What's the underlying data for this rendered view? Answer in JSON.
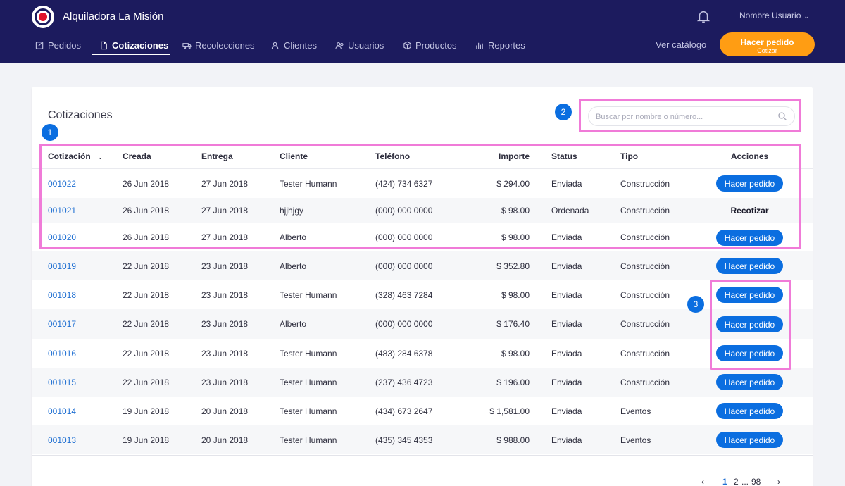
{
  "header": {
    "brand": "Alquiladora La Misión",
    "user_name": "Nombre Usuario",
    "nav": [
      {
        "label": "Pedidos",
        "icon": "edit-icon"
      },
      {
        "label": "Cotizaciones",
        "icon": "document-icon"
      },
      {
        "label": "Recolecciones",
        "icon": "truck-icon"
      },
      {
        "label": "Clientes",
        "icon": "user-icon"
      },
      {
        "label": "Usuarios",
        "icon": "users-icon"
      },
      {
        "label": "Productos",
        "icon": "box-icon"
      },
      {
        "label": "Reportes",
        "icon": "bar-chart-icon"
      }
    ],
    "active_nav": "Cotizaciones",
    "ver_catalogo": "Ver catálogo",
    "cta_main": "Hacer pedido",
    "cta_sub": "Cotizar"
  },
  "main": {
    "title": "Cotizaciones",
    "search_placeholder": "Buscar por nombre o número...",
    "columns": [
      "Cotización",
      "Creada",
      "Entrega",
      "Cliente",
      "Teléfono",
      "Importe",
      "Status",
      "Tipo",
      "Acciones"
    ],
    "rows": [
      {
        "id": "001022",
        "creada": "26 Jun 2018",
        "entrega": "27 Jun 2018",
        "cliente": "Tester Humann",
        "telefono": "(424) 734 6327",
        "importe": "$ 294.00",
        "status": "Enviada",
        "tipo": "Construcción",
        "accion": "Hacer pedido"
      },
      {
        "id": "001021",
        "creada": "26 Jun 2018",
        "entrega": "27 Jun 2018",
        "cliente": "hjjhjgy",
        "telefono": "(000) 000 0000",
        "importe": "$ 98.00",
        "status": "Ordenada",
        "tipo": "Construcción",
        "accion": "Recotizar"
      },
      {
        "id": "001020",
        "creada": "26 Jun 2018",
        "entrega": "27 Jun 2018",
        "cliente": "Alberto",
        "telefono": "(000) 000 0000",
        "importe": "$ 98.00",
        "status": "Enviada",
        "tipo": "Construcción",
        "accion": "Hacer pedido"
      },
      {
        "id": "001019",
        "creada": "22 Jun 2018",
        "entrega": "23 Jun 2018",
        "cliente": "Alberto",
        "telefono": "(000) 000 0000",
        "importe": "$ 352.80",
        "status": "Enviada",
        "tipo": "Construcción",
        "accion": "Hacer pedido"
      },
      {
        "id": "001018",
        "creada": "22 Jun 2018",
        "entrega": "23 Jun 2018",
        "cliente": "Tester Humann",
        "telefono": "(328) 463 7284",
        "importe": "$ 98.00",
        "status": "Enviada",
        "tipo": "Construcción",
        "accion": "Hacer pedido"
      },
      {
        "id": "001017",
        "creada": "22 Jun 2018",
        "entrega": "23 Jun 2018",
        "cliente": "Alberto",
        "telefono": "(000) 000 0000",
        "importe": "$ 176.40",
        "status": "Enviada",
        "tipo": "Construcción",
        "accion": "Hacer pedido"
      },
      {
        "id": "001016",
        "creada": "22 Jun 2018",
        "entrega": "23 Jun 2018",
        "cliente": "Tester Humann",
        "telefono": "(483) 284 6378",
        "importe": "$ 98.00",
        "status": "Enviada",
        "tipo": "Construcción",
        "accion": "Hacer pedido"
      },
      {
        "id": "001015",
        "creada": "22 Jun 2018",
        "entrega": "23 Jun 2018",
        "cliente": "Tester Humann",
        "telefono": "(237) 436 4723",
        "importe": "$ 196.00",
        "status": "Enviada",
        "tipo": "Construcción",
        "accion": "Hacer pedido"
      },
      {
        "id": "001014",
        "creada": "19 Jun 2018",
        "entrega": "20 Jun 2018",
        "cliente": "Tester Humann",
        "telefono": "(434) 673 2647",
        "importe": "$ 1,581.00",
        "status": "Enviada",
        "tipo": "Eventos",
        "accion": "Hacer pedido"
      },
      {
        "id": "001013",
        "creada": "19 Jun 2018",
        "entrega": "20 Jun 2018",
        "cliente": "Tester Humann",
        "telefono": "(435) 345 4353",
        "importe": "$ 988.00",
        "status": "Enviada",
        "tipo": "Eventos",
        "accion": "Hacer pedido"
      }
    ]
  },
  "pagination": {
    "prev": "‹",
    "current": "1",
    "next_page": "2",
    "ellipsis": "...",
    "last": "98",
    "next": "›"
  },
  "annotations": [
    "1",
    "2",
    "3"
  ],
  "colors": {
    "header_bg": "#1c1b5e",
    "cta": "#ff9d13",
    "primary": "#0b6ee0",
    "link": "#1f6fd2",
    "highlight": "#f07bd8"
  }
}
